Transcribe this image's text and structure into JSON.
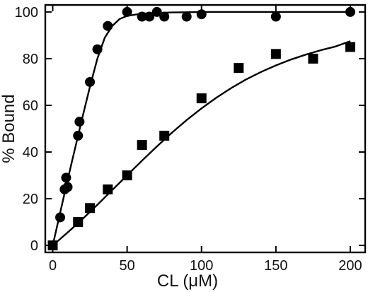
{
  "chart_data": {
    "type": "scatter",
    "title": "",
    "xlabel": "CL (μM)",
    "ylabel": "% Bound",
    "xlim": [
      -5,
      210
    ],
    "ylim": [
      -3,
      103
    ],
    "xticks": [
      0,
      50,
      100,
      150,
      200
    ],
    "yticks": [
      0,
      20,
      40,
      60,
      80,
      100
    ],
    "grid": false,
    "legend": "none",
    "colors": {
      "marker": "#000000",
      "axis": "#000000",
      "background": "#ffffff"
    },
    "series": [
      {
        "marker": "circle",
        "x": [
          0,
          5,
          8,
          9,
          10,
          17,
          18,
          25,
          30,
          37,
          50,
          60,
          65,
          70,
          75,
          90,
          100,
          150,
          200
        ],
        "y": [
          0,
          12,
          24,
          29,
          25,
          47,
          53,
          70,
          84,
          94,
          100,
          98,
          98,
          100,
          98,
          98,
          99,
          98,
          100
        ],
        "fit": {
          "x": [
            0,
            5,
            10,
            15,
            20,
            25,
            30,
            35,
            40,
            45,
            50,
            60,
            80,
            100,
            150,
            200
          ],
          "y": [
            0,
            14,
            28,
            41.5,
            55,
            68,
            80,
            89,
            94,
            97,
            98.3,
            99.3,
            99.8,
            100,
            100,
            100
          ]
        }
      },
      {
        "marker": "square",
        "x": [
          0,
          17,
          25,
          37,
          50,
          60,
          75,
          100,
          125,
          150,
          175,
          200
        ],
        "y": [
          0,
          10,
          16,
          24,
          30,
          43,
          47,
          63,
          76,
          82,
          80,
          85
        ],
        "fit": {
          "x": [
            0,
            10,
            20,
            30,
            40,
            50,
            60,
            70,
            80,
            90,
            100,
            110,
            120,
            130,
            140,
            150,
            160,
            170,
            180,
            190,
            200
          ],
          "y": [
            0,
            5.5,
            11.3,
            17.4,
            23.7,
            30,
            36.3,
            42.4,
            48.2,
            53.7,
            58.7,
            63.3,
            67.4,
            71.1,
            74.3,
            77.1,
            79.6,
            81.7,
            83.6,
            85.2,
            87.5
          ]
        }
      }
    ]
  }
}
